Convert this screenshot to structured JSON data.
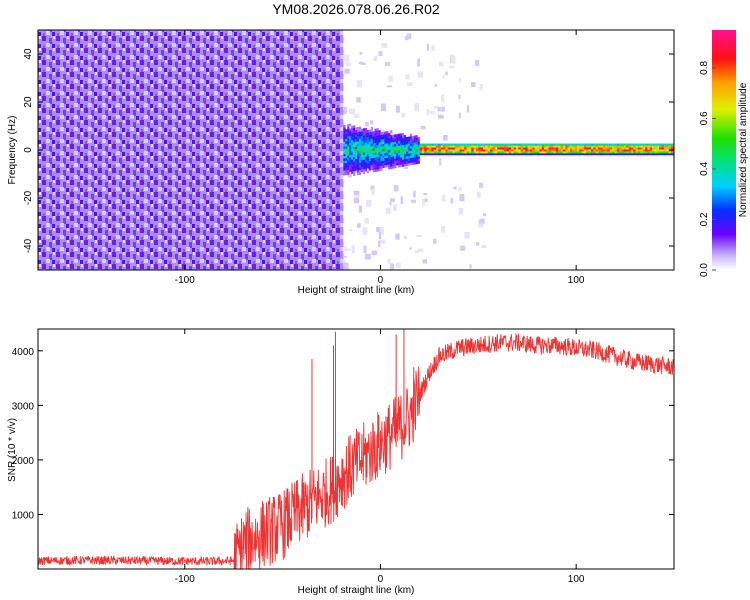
{
  "title": "YM08.2026.078.06.26.R02",
  "chart_data": [
    {
      "type": "heatmap",
      "xlabel": "Height of straight line (km)",
      "ylabel": "Frequency (Hz)",
      "xlim": [
        -175,
        150
      ],
      "ylim": [
        -50,
        50
      ],
      "xticks": [
        -100,
        0,
        100
      ],
      "yticks": [
        -40,
        -20,
        0,
        20,
        40
      ],
      "grid": false,
      "colorbar": {
        "label": "Normalized spectral amplitude",
        "range": [
          0.0,
          0.95
        ],
        "ticks": [
          0.0,
          0.2,
          0.4,
          0.6,
          0.8
        ],
        "tick_labels": [
          "0.0",
          "0.2",
          "0.4",
          "0.6",
          "0.8"
        ]
      },
      "regions": [
        {
          "x_range": [
            -175,
            -19
          ],
          "freq_range": [
            -50,
            50
          ],
          "description_value": "broadband noise",
          "amplitude": 0.2
        },
        {
          "x_range": [
            -19,
            20
          ],
          "center_freq": 0,
          "bandwidth_hz": 12,
          "amplitude": 0.45
        },
        {
          "x_range": [
            20,
            150
          ],
          "center_freq": 0.5,
          "bandwidth_hz": 5,
          "amplitude": 0.9
        }
      ]
    },
    {
      "type": "line",
      "xlabel": "Height of straight line (km)",
      "ylabel": "SNR (10 * v/v)",
      "xlim": [
        -175,
        150
      ],
      "ylim": [
        0,
        4400
      ],
      "xticks": [
        -100,
        0,
        100
      ],
      "yticks": [
        1000,
        2000,
        3000,
        4000
      ],
      "color": "#ee3333",
      "grid": false,
      "series": [
        {
          "x": [
            -175,
            -150,
            -120,
            -90,
            -75,
            -70,
            -60,
            -50,
            -40,
            -30,
            -24,
            -20,
            -10,
            0,
            10,
            15,
            20,
            25,
            30,
            40,
            50,
            60,
            70,
            80,
            90,
            100,
            110,
            120,
            130,
            140,
            150
          ],
          "y": [
            150,
            160,
            150,
            140,
            150,
            450,
            650,
            800,
            1100,
            1350,
            1500,
            1700,
            2000,
            2300,
            2600,
            2800,
            3200,
            3600,
            3900,
            4050,
            4100,
            4150,
            4150,
            4100,
            4100,
            4050,
            4000,
            3900,
            3800,
            3750,
            3700
          ]
        }
      ],
      "spikes": [
        {
          "x": -23,
          "y": 4350
        },
        {
          "x": -24,
          "y": 4100
        },
        {
          "x": -35,
          "y": 3850
        },
        {
          "x": 8,
          "y": 4300
        },
        {
          "x": 12,
          "y": 4400
        },
        {
          "x": 17,
          "y": 3700
        }
      ]
    }
  ]
}
